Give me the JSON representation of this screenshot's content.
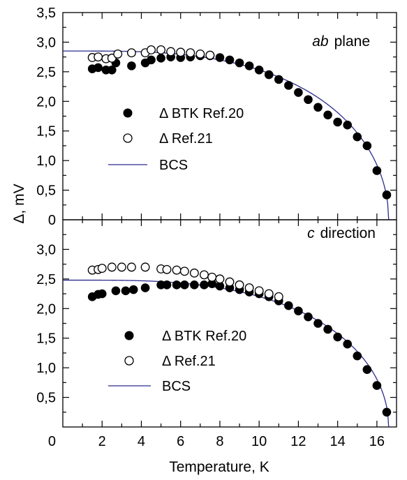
{
  "colors": {
    "axis": "#000000",
    "bcs_line": "#2b2b8f",
    "filled": "#000000",
    "open_fill": "#ffffff"
  },
  "chart_data": [
    {
      "type": "scatter",
      "panel_label": {
        "italic": "ab",
        "rest": "plane"
      },
      "xlabel": "Temperature, K",
      "ylabel": "Δ, mV",
      "xlim": [
        0,
        17
      ],
      "ylim": [
        0,
        3.5
      ],
      "x_ticks": [
        2,
        4,
        6,
        8,
        10,
        12,
        14,
        16
      ],
      "x_tick_labels": [
        "2",
        "4",
        "6",
        "8",
        "10",
        "12",
        "14",
        "16"
      ],
      "y_ticks": [
        0,
        0.5,
        1.0,
        1.5,
        2.0,
        2.5,
        3.0,
        3.5
      ],
      "y_tick_labels": [
        "0",
        "0,5",
        "1,0",
        "1,5",
        "2,0",
        "2,5",
        "3,0",
        "3,5"
      ],
      "legend": [
        "Δ BTK Ref.20",
        "Δ Ref.21",
        "BCS"
      ],
      "series": [
        {
          "name": "Δ BTK Ref.20",
          "marker": "filled",
          "x": [
            1.5,
            1.8,
            2.2,
            2.5,
            2.7,
            3.5,
            4.2,
            4.5,
            5.0,
            5.5,
            6.0,
            6.5,
            7.0,
            7.5,
            8.0,
            8.5,
            9.0,
            9.5,
            10.0,
            10.5,
            11.0,
            11.5,
            12.0,
            12.5,
            13.0,
            13.5,
            14.0,
            14.5,
            15.0,
            15.5,
            16.0,
            16.5
          ],
          "y": [
            2.55,
            2.57,
            2.53,
            2.53,
            2.65,
            2.6,
            2.65,
            2.7,
            2.73,
            2.75,
            2.74,
            2.75,
            2.77,
            2.77,
            2.74,
            2.7,
            2.65,
            2.6,
            2.53,
            2.45,
            2.37,
            2.27,
            2.15,
            2.03,
            1.9,
            1.77,
            1.65,
            1.6,
            1.4,
            1.25,
            0.83,
            0.42
          ]
        },
        {
          "name": "Δ Ref.21",
          "marker": "open",
          "x": [
            1.5,
            1.8,
            2.2,
            2.5,
            2.8,
            3.5,
            4.2,
            4.5,
            5.0,
            5.5,
            6.0,
            6.5,
            7.0,
            7.5
          ],
          "y": [
            2.74,
            2.75,
            2.72,
            2.73,
            2.8,
            2.82,
            2.82,
            2.87,
            2.87,
            2.84,
            2.83,
            2.82,
            2.8,
            2.78
          ]
        },
        {
          "name": "BCS",
          "line": true,
          "delta0": 2.85,
          "tc": 16.6
        }
      ]
    },
    {
      "type": "scatter",
      "panel_label": {
        "italic": "c",
        "rest": "direction"
      },
      "xlabel": "Temperature, K",
      "ylabel": "Δ, mV",
      "xlim": [
        0,
        17
      ],
      "ylim": [
        0,
        3.5
      ],
      "x_ticks": [
        2,
        4,
        6,
        8,
        10,
        12,
        14,
        16
      ],
      "x_tick_labels": [
        "2",
        "4",
        "6",
        "8",
        "10",
        "12",
        "14",
        "16"
      ],
      "y_ticks": [
        0,
        0.5,
        1.0,
        1.5,
        2.0,
        2.5,
        3.0
      ],
      "y_tick_labels": [
        "0",
        "0,5",
        "1,0",
        "1,5",
        "2,0",
        "2,5",
        "3,0"
      ],
      "legend": [
        "Δ BTK Ref.20",
        "Δ Ref.21",
        "BCS"
      ],
      "series": [
        {
          "name": "Δ BTK Ref.20",
          "marker": "filled",
          "x": [
            1.5,
            1.8,
            2.0,
            2.7,
            3.2,
            3.6,
            4.2,
            5.0,
            5.3,
            5.8,
            6.2,
            6.7,
            7.2,
            7.6,
            8.0,
            8.5,
            9.0,
            9.5,
            10.0,
            10.5,
            11.0,
            11.5,
            12.0,
            12.5,
            13.0,
            13.5,
            14.0,
            14.5,
            15.0,
            15.5,
            16.0,
            16.5
          ],
          "y": [
            2.2,
            2.24,
            2.25,
            2.3,
            2.3,
            2.32,
            2.35,
            2.4,
            2.4,
            2.4,
            2.4,
            2.4,
            2.4,
            2.42,
            2.38,
            2.35,
            2.32,
            2.28,
            2.25,
            2.2,
            2.13,
            2.05,
            1.96,
            1.86,
            1.75,
            1.65,
            1.52,
            1.4,
            1.2,
            0.97,
            0.7,
            0.25
          ]
        },
        {
          "name": "Δ Ref.21",
          "marker": "open",
          "x": [
            1.5,
            1.8,
            2.0,
            2.5,
            3.0,
            3.5,
            4.2,
            5.0,
            5.3,
            5.8,
            6.2,
            6.7,
            7.2,
            7.6,
            8.0,
            8.5,
            9.0,
            9.5,
            10.0,
            10.5,
            11.0
          ],
          "y": [
            2.65,
            2.66,
            2.68,
            2.7,
            2.7,
            2.7,
            2.7,
            2.67,
            2.66,
            2.65,
            2.63,
            2.6,
            2.57,
            2.53,
            2.5,
            2.45,
            2.4,
            2.35,
            2.3,
            2.25,
            2.2
          ]
        },
        {
          "name": "BCS",
          "line": true,
          "delta0": 2.48,
          "tc": 16.6
        }
      ]
    }
  ]
}
